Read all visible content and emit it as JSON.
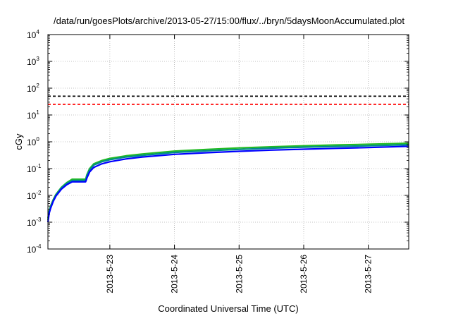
{
  "chart_data": {
    "type": "line",
    "title": "/data/run/goesPlots/archive/2013-05-27/15:00/flux/../bryn/5daysMoonAccumulated.plot",
    "xlabel": "Coordinated Universal Time (UTC)",
    "ylabel": "cGy",
    "x_scale": "time",
    "y_scale": "log",
    "xlim": [
      "2013-05-22T01:00",
      "2013-05-27T15:00"
    ],
    "ylim": [
      0.0001,
      10000
    ],
    "x_ticks": [
      "2013-5-23",
      "2013-5-24",
      "2013-5-25",
      "2013-5-26",
      "2013-5-27"
    ],
    "y_ticks": [
      {
        "value": 0.0001,
        "base": "10",
        "exp": "-4"
      },
      {
        "value": 0.001,
        "base": "10",
        "exp": "-3"
      },
      {
        "value": 0.01,
        "base": "10",
        "exp": "-2"
      },
      {
        "value": 0.1,
        "base": "10",
        "exp": "-1"
      },
      {
        "value": 1,
        "base": "10",
        "exp": "0"
      },
      {
        "value": 10,
        "base": "10",
        "exp": "1"
      },
      {
        "value": 100,
        "base": "10",
        "exp": "2"
      },
      {
        "value": 1000,
        "base": "10",
        "exp": "3"
      },
      {
        "value": 10000,
        "base": "10",
        "exp": "4"
      }
    ],
    "grid": true,
    "series": [
      {
        "color": "#000000",
        "style": "dashed",
        "x": [
          "2013-05-22T01:00",
          "2013-05-27T15:00"
        ],
        "y": [
          50,
          50
        ]
      },
      {
        "color": "#ff0000",
        "style": "dashed",
        "x": [
          "2013-05-22T01:00",
          "2013-05-27T15:00"
        ],
        "y": [
          25,
          25
        ]
      },
      {
        "color": "#22bb22",
        "style": "solid",
        "x": [
          "2013-05-22T01:00",
          "2013-05-22T01:30",
          "2013-05-22T02:00",
          "2013-05-22T03:00",
          "2013-05-22T04:00",
          "2013-05-22T06:00",
          "2013-05-22T08:00",
          "2013-05-22T10:00",
          "2013-05-22T15:00",
          "2013-05-22T15:30",
          "2013-05-22T16:30",
          "2013-05-22T18:00",
          "2013-05-22T21:00",
          "2013-05-23T00:00",
          "2013-05-23T06:00",
          "2013-05-23T12:00",
          "2013-05-24T00:00",
          "2013-05-24T12:00",
          "2013-05-25T00:00",
          "2013-05-25T12:00",
          "2013-05-26T00:00",
          "2013-05-26T12:00",
          "2013-05-27T00:00",
          "2013-05-27T15:00"
        ],
        "y": [
          0.0014,
          0.0028,
          0.004,
          0.007,
          0.011,
          0.02,
          0.03,
          0.04,
          0.04,
          0.06,
          0.1,
          0.15,
          0.2,
          0.24,
          0.3,
          0.35,
          0.45,
          0.52,
          0.59,
          0.65,
          0.71,
          0.76,
          0.81,
          0.88
        ]
      },
      {
        "color": "#008b8b",
        "style": "solid",
        "x": [
          "2013-05-22T01:00",
          "2013-05-22T01:30",
          "2013-05-22T02:00",
          "2013-05-22T03:00",
          "2013-05-22T04:00",
          "2013-05-22T06:00",
          "2013-05-22T08:00",
          "2013-05-22T10:00",
          "2013-05-22T15:00",
          "2013-05-22T15:30",
          "2013-05-22T16:30",
          "2013-05-22T18:00",
          "2013-05-22T21:00",
          "2013-05-23T00:00",
          "2013-05-23T06:00",
          "2013-05-23T12:00",
          "2013-05-24T00:00",
          "2013-05-24T12:00",
          "2013-05-25T00:00",
          "2013-05-25T12:00",
          "2013-05-26T00:00",
          "2013-05-26T12:00",
          "2013-05-27T00:00",
          "2013-05-27T15:00"
        ],
        "y": [
          0.0012,
          0.0025,
          0.0037,
          0.0065,
          0.0105,
          0.019,
          0.028,
          0.036,
          0.036,
          0.055,
          0.09,
          0.135,
          0.18,
          0.215,
          0.27,
          0.31,
          0.4,
          0.46,
          0.52,
          0.58,
          0.63,
          0.67,
          0.71,
          0.78
        ]
      },
      {
        "color": "#0000ff",
        "style": "solid",
        "x": [
          "2013-05-22T01:00",
          "2013-05-22T01:30",
          "2013-05-22T02:00",
          "2013-05-22T03:00",
          "2013-05-22T04:00",
          "2013-05-22T06:00",
          "2013-05-22T08:00",
          "2013-05-22T10:00",
          "2013-05-22T15:00",
          "2013-05-22T15:30",
          "2013-05-22T16:30",
          "2013-05-22T18:00",
          "2013-05-22T21:00",
          "2013-05-23T00:00",
          "2013-05-23T06:00",
          "2013-05-23T12:00",
          "2013-05-24T00:00",
          "2013-05-24T12:00",
          "2013-05-25T00:00",
          "2013-05-25T12:00",
          "2013-05-26T00:00",
          "2013-05-26T12:00",
          "2013-05-27T00:00",
          "2013-05-27T15:00"
        ],
        "y": [
          0.001,
          0.0022,
          0.0033,
          0.006,
          0.0095,
          0.017,
          0.025,
          0.032,
          0.032,
          0.045,
          0.075,
          0.11,
          0.15,
          0.18,
          0.23,
          0.27,
          0.34,
          0.39,
          0.44,
          0.49,
          0.53,
          0.57,
          0.61,
          0.68
        ]
      }
    ]
  }
}
